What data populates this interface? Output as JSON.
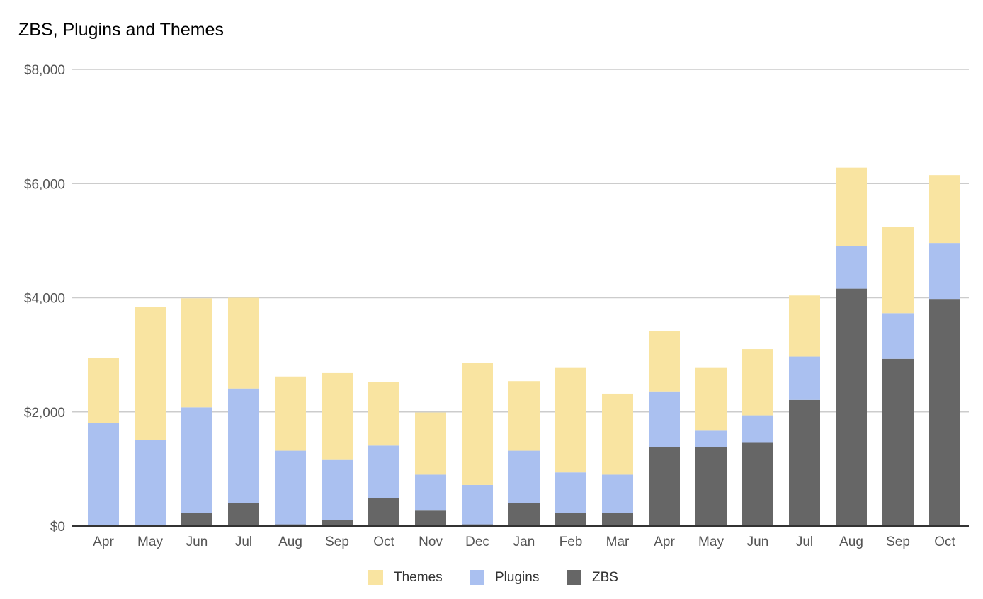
{
  "chart_data": {
    "type": "bar",
    "stacked": true,
    "title": "ZBS, Plugins and Themes",
    "xlabel": "",
    "ylabel": "",
    "ylim": [
      0,
      8000
    ],
    "yticks": [
      0,
      2000,
      4000,
      6000,
      8000
    ],
    "ytick_labels": [
      "$0",
      "$2,000",
      "$4,000",
      "$6,000",
      "$8,000"
    ],
    "categories": [
      "Apr",
      "May",
      "Jun",
      "Jul",
      "Aug",
      "Sep",
      "Oct",
      "Nov",
      "Dec",
      "Jan",
      "Feb",
      "Mar",
      "Apr",
      "May",
      "Jun",
      "Jul",
      "Aug",
      "Sep",
      "Oct"
    ],
    "series": [
      {
        "name": "ZBS",
        "color": "#666666",
        "values": [
          0,
          0,
          230,
          400,
          30,
          110,
          490,
          270,
          30,
          400,
          230,
          230,
          1380,
          1380,
          1470,
          2210,
          4160,
          2930,
          3980
        ]
      },
      {
        "name": "Plugins",
        "color": "#aac0f0",
        "values": [
          1810,
          1510,
          1850,
          2010,
          1290,
          1060,
          920,
          630,
          690,
          920,
          710,
          670,
          980,
          290,
          470,
          760,
          740,
          800,
          980
        ]
      },
      {
        "name": "Themes",
        "color": "#f9e4a1",
        "values": [
          1130,
          2330,
          1910,
          1590,
          1300,
          1510,
          1110,
          1090,
          2140,
          1220,
          1830,
          1420,
          1060,
          1100,
          1160,
          1070,
          1380,
          1510,
          1190
        ]
      }
    ],
    "legend": {
      "position": "bottom",
      "order": [
        "Themes",
        "Plugins",
        "ZBS"
      ]
    },
    "grid": true
  }
}
